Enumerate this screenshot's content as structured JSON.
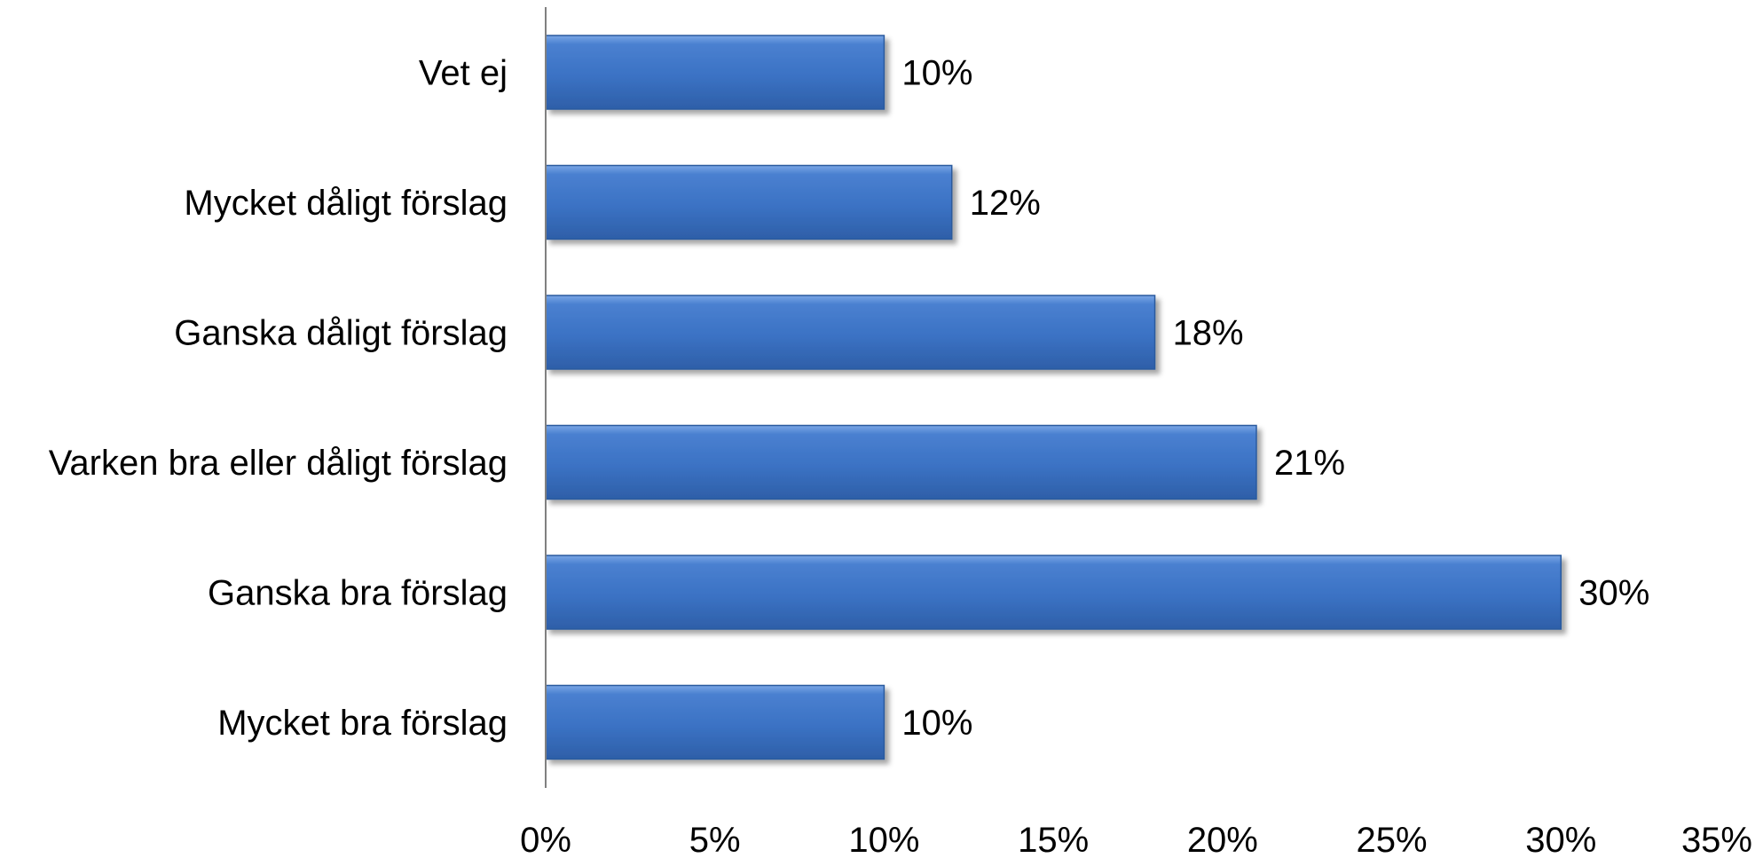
{
  "chart_data": {
    "type": "bar",
    "orientation": "horizontal",
    "categories": [
      "Vet ej",
      "Mycket dåligt förslag",
      "Ganska dåligt förslag",
      "Varken bra eller dåligt förslag",
      "Ganska bra förslag",
      "Mycket bra förslag"
    ],
    "values": [
      10,
      12,
      18,
      21,
      30,
      10
    ],
    "value_labels": [
      "10%",
      "12%",
      "18%",
      "21%",
      "30%",
      "10%"
    ],
    "xlim": [
      0,
      35
    ],
    "x_ticks": [
      0,
      5,
      10,
      15,
      20,
      25,
      30,
      35
    ],
    "x_tick_labels": [
      "0%",
      "5%",
      "10%",
      "15%",
      "20%",
      "25%",
      "30%",
      "35%"
    ],
    "grid": false,
    "bar_color": "#3E74C4",
    "legend": "none"
  }
}
